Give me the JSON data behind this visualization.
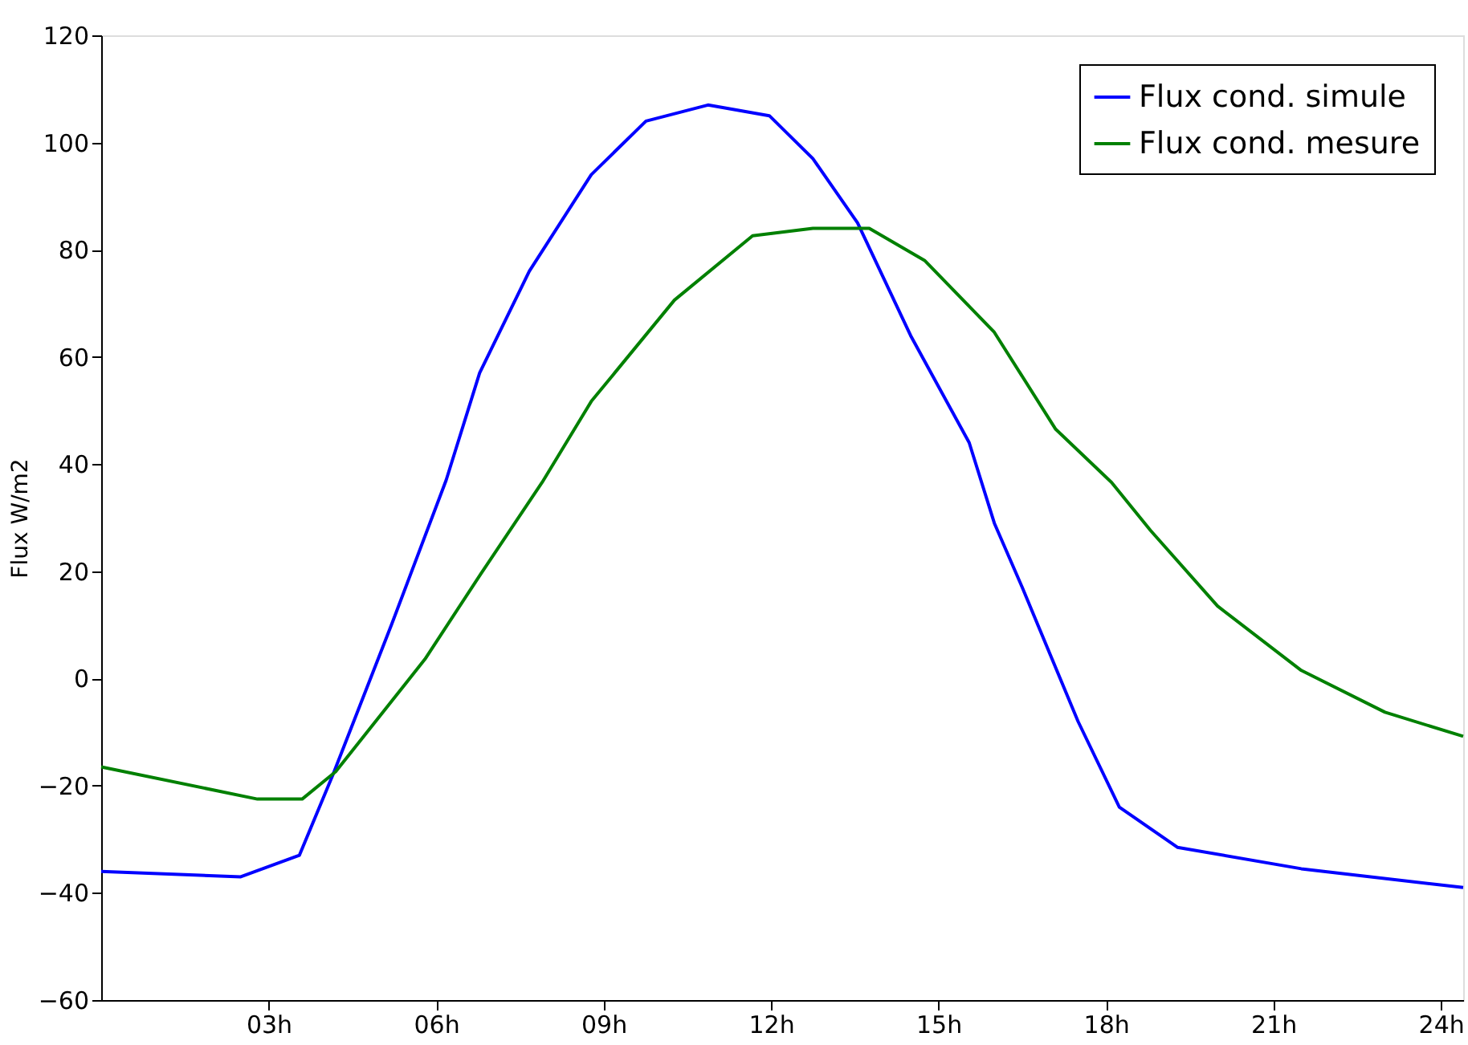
{
  "chart_data": {
    "type": "line",
    "ylabel": "Flux W/m2",
    "xlim": [
      0,
      24.4
    ],
    "xticks": [
      {
        "value": 3,
        "label": "03h"
      },
      {
        "value": 6,
        "label": "06h"
      },
      {
        "value": 9,
        "label": "09h"
      },
      {
        "value": 12,
        "label": "12h"
      },
      {
        "value": 15,
        "label": "15h"
      },
      {
        "value": 18,
        "label": "18h"
      },
      {
        "value": 21,
        "label": "21h"
      },
      {
        "value": 24,
        "label": "24h"
      }
    ],
    "ylim": [
      -60,
      120
    ],
    "yticks": [
      -60,
      -40,
      -20,
      0,
      20,
      40,
      60,
      80,
      100,
      120
    ],
    "grid": false,
    "legend": "top right",
    "marker": "none",
    "line_style": "solid",
    "series": [
      {
        "name": "Flux cond. simule",
        "color": "#0000ff",
        "x": [
          0,
          2.5,
          3.55,
          4.15,
          5.2,
          6.18,
          6.78,
          7.67,
          8.78,
          9.76,
          10.87,
          11.97,
          12.75,
          13.55,
          14.5,
          15.55,
          16.0,
          16.5,
          17.5,
          18.24,
          19.28,
          21.5,
          24.4
        ],
        "values": [
          -36,
          -37,
          -33,
          -18,
          10,
          37,
          57,
          76,
          94,
          104,
          107,
          105,
          97,
          85,
          64,
          44,
          29,
          17,
          -8,
          -24,
          -31.5,
          -35.5,
          -39
        ]
      },
      {
        "name": "Flux cond. mesure",
        "color": "#008000",
        "x": [
          0,
          2.8,
          3.6,
          4.2,
          5.8,
          6.8,
          7.9,
          8.78,
          10.27,
          11.67,
          12.75,
          13.76,
          14.75,
          16.0,
          17.1,
          18.1,
          18.8,
          20.0,
          21.5,
          23.0,
          24.4
        ],
        "values": [
          -16.5,
          -22.5,
          -22.5,
          -17.4,
          3.6,
          19.5,
          36.6,
          51.7,
          70.6,
          82.6,
          84,
          84,
          78,
          64.6,
          46.5,
          36.6,
          27.6,
          13.5,
          1.5,
          -6.3,
          -10.8
        ]
      }
    ]
  }
}
